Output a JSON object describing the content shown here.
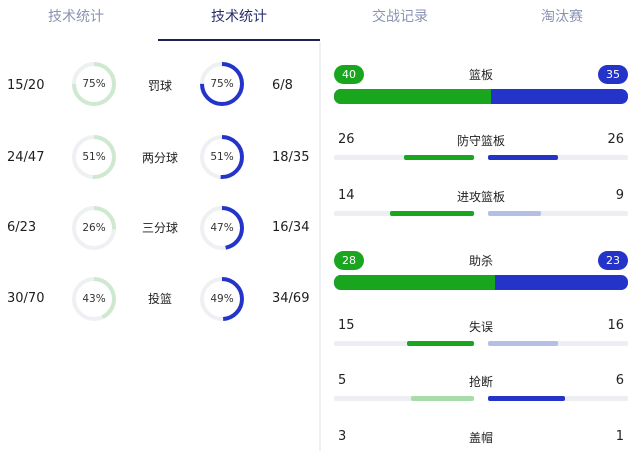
{
  "tabs": [
    "技术统计",
    "技术统计",
    "交战记录",
    "淘汰赛"
  ],
  "colors": {
    "home": "#1aa51f",
    "away": "#2434c9",
    "home_light": "#a9dcaa",
    "away_light": "#b4bfe6",
    "ring_home": "#cfe9d1",
    "ring_track": "#eef0f3"
  },
  "shooting": [
    {
      "label": "罚球",
      "home": "15/20",
      "home_pct": "75%",
      "home_frac": 0.75,
      "away": "6/8",
      "away_pct": "75%",
      "away_frac": 0.75
    },
    {
      "label": "两分球",
      "home": "24/47",
      "home_pct": "51%",
      "home_frac": 0.51,
      "away": "18/35",
      "away_pct": "51%",
      "away_frac": 0.51
    },
    {
      "label": "三分球",
      "home": "6/23",
      "home_pct": "26%",
      "home_frac": 0.26,
      "away": "16/34",
      "away_pct": "47%",
      "away_frac": 0.47
    },
    {
      "label": "投篮",
      "home": "30/70",
      "home_pct": "43%",
      "home_frac": 0.43,
      "away": "34/69",
      "away_pct": "49%",
      "away_frac": 0.49
    }
  ],
  "rebounds": {
    "label": "篮板",
    "home": "40",
    "away": "35",
    "home_frac": 0.533
  },
  "rebound_details": [
    {
      "label": "防守篮板",
      "home": "26",
      "away": "26",
      "home_frac": 0.5,
      "away_frac": 0.5,
      "home_light": false,
      "away_light": false
    },
    {
      "label": "进攻篮板",
      "home": "14",
      "away": "9",
      "home_frac": 0.6,
      "away_frac": 0.38,
      "home_light": false,
      "away_light": true
    }
  ],
  "assists": {
    "label": "助杀",
    "home": "28",
    "away": "23",
    "home_frac": 0.549
  },
  "other_stats": [
    {
      "label": "失误",
      "home": "15",
      "away": "16",
      "home_frac": 0.48,
      "away_frac": 0.5,
      "home_light": false,
      "away_light": true
    },
    {
      "label": "抢断",
      "home": "5",
      "away": "6",
      "home_frac": 0.45,
      "away_frac": 0.55,
      "home_light": true,
      "away_light": false
    },
    {
      "label": "盖帽",
      "home": "3",
      "away": "1",
      "home_frac": 0.75,
      "away_frac": 0.25,
      "home_light": false,
      "away_light": false
    }
  ]
}
